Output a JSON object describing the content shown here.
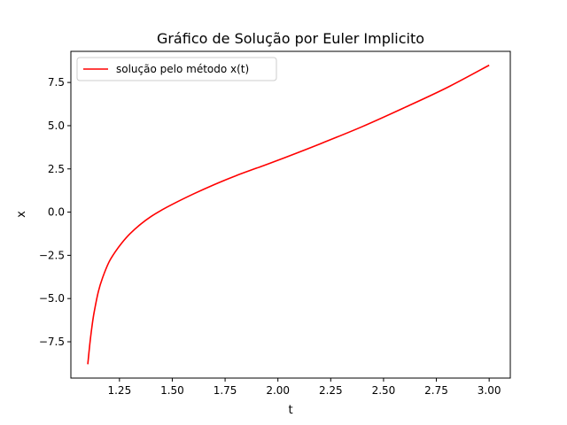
{
  "chart_data": {
    "type": "line",
    "title": "Gráfico de Solução por Euler Implicito",
    "xlabel": "t",
    "ylabel": "x",
    "xlim": [
      1.02,
      3.1
    ],
    "ylim": [
      -9.6,
      9.3
    ],
    "xticks": [
      1.25,
      1.5,
      1.75,
      2.0,
      2.25,
      2.5,
      2.75,
      3.0
    ],
    "xtick_labels": [
      "1.25",
      "1.50",
      "1.75",
      "2.00",
      "2.25",
      "2.50",
      "2.75",
      "3.00"
    ],
    "yticks": [
      -7.5,
      -5.0,
      -2.5,
      0.0,
      2.5,
      5.0,
      7.5
    ],
    "ytick_labels": [
      "−7.5",
      "−5.0",
      "−2.5",
      "0.0",
      "2.5",
      "5.0",
      "7.5"
    ],
    "grid": false,
    "legend_position": "top-left",
    "series": [
      {
        "name": "solução pelo método x(t)",
        "color": "#ff0000",
        "x": [
          1.1,
          1.11,
          1.12,
          1.13,
          1.15,
          1.17,
          1.2,
          1.23,
          1.26,
          1.3,
          1.35,
          1.4,
          1.45,
          1.5,
          1.6,
          1.7,
          1.8,
          1.9,
          2.0,
          2.2,
          2.4,
          2.6,
          2.8,
          3.0
        ],
        "y": [
          -8.8,
          -7.6,
          -6.6,
          -5.8,
          -4.6,
          -3.8,
          -2.9,
          -2.3,
          -1.8,
          -1.25,
          -0.7,
          -0.25,
          0.12,
          0.45,
          1.05,
          1.6,
          2.1,
          2.55,
          3.0,
          3.95,
          4.95,
          6.05,
          7.2,
          8.5
        ]
      }
    ]
  }
}
